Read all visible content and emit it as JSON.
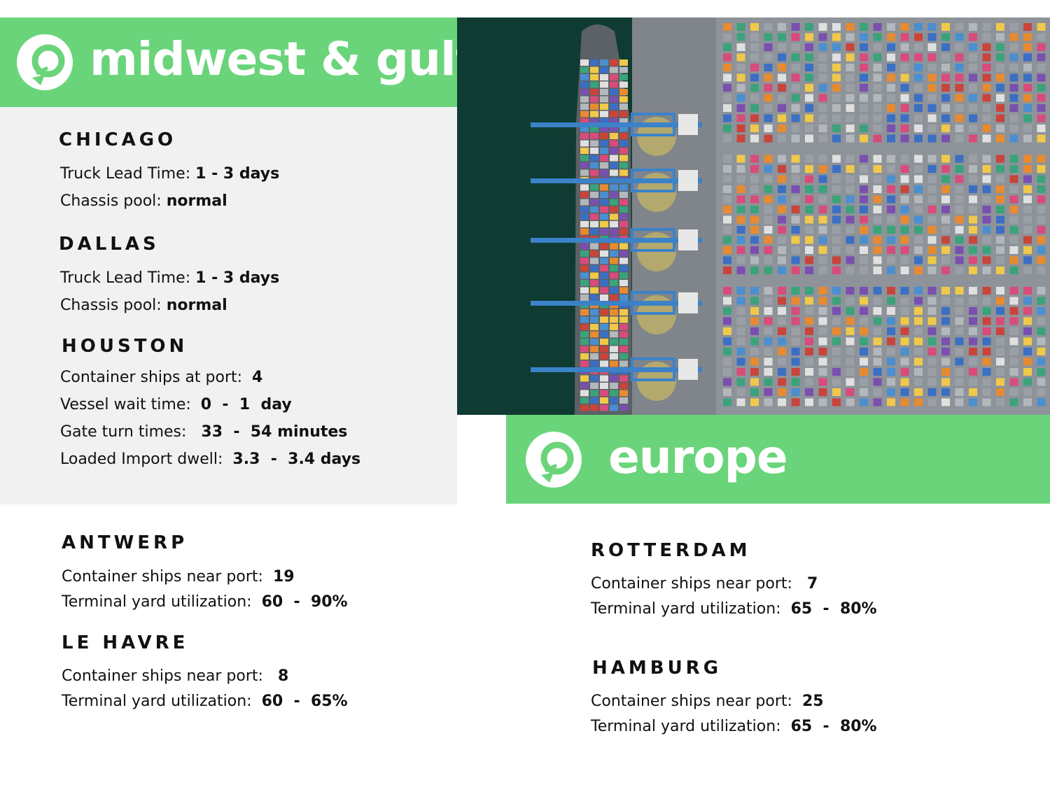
{
  "colors": {
    "accent_green": "#6ad47a",
    "panel_grey": "#f1f1f1",
    "text": "#111111"
  },
  "icons": {
    "logo": "refresh-arrow-logo-icon",
    "photo": "container-port-aerial-photo"
  },
  "midwest": {
    "title": "midwest & gulf",
    "chicago": {
      "name": "CHICAGO",
      "truck_label": "Truck Lead Time: ",
      "truck_value": "1 - 3 days",
      "chassis_label": "Chassis pool: ",
      "chassis_value": "normal"
    },
    "dallas": {
      "name": "DALLAS",
      "truck_label": "Truck Lead Time: ",
      "truck_value": "1 - 3 days",
      "chassis_label": "Chassis pool: ",
      "chassis_value": "normal"
    },
    "houston": {
      "name": "HOUSTON",
      "ships_label": "Container ships at port:  ",
      "ships_value": "4",
      "wait_label": "Vessel wait time:  ",
      "wait_value": "0  -  1  day",
      "gate_label": "Gate turn times:   ",
      "gate_value": "33  -  54 minutes",
      "dwell_label": "Loaded Import dwell:  ",
      "dwell_value": "3.3  -  3.4 days"
    }
  },
  "europe": {
    "title": "europe",
    "antwerp": {
      "name": "ANTWERP",
      "ships_label": "Container ships near port:  ",
      "ships_value": "19",
      "yard_label": "Terminal yard utilization:  ",
      "yard_value": "60  -  90%"
    },
    "le_havre": {
      "name": "LE  HAVRE",
      "ships_label": "Container ships near port:   ",
      "ships_value": "8",
      "yard_label": "Terminal yard utilization:  ",
      "yard_value": "60  -  65%"
    },
    "rotterdam": {
      "name": "ROTTERDAM",
      "ships_label": "Container ships near port:   ",
      "ships_value": "7",
      "yard_label": "Terminal yard utilization:  ",
      "yard_value": "65  -  80%"
    },
    "hamburg": {
      "name": "HAMBURG",
      "ships_label": "Container ships near port:  ",
      "ships_value": "25",
      "yard_label": "Terminal yard utilization:  ",
      "yard_value": "65  -  80%"
    }
  }
}
